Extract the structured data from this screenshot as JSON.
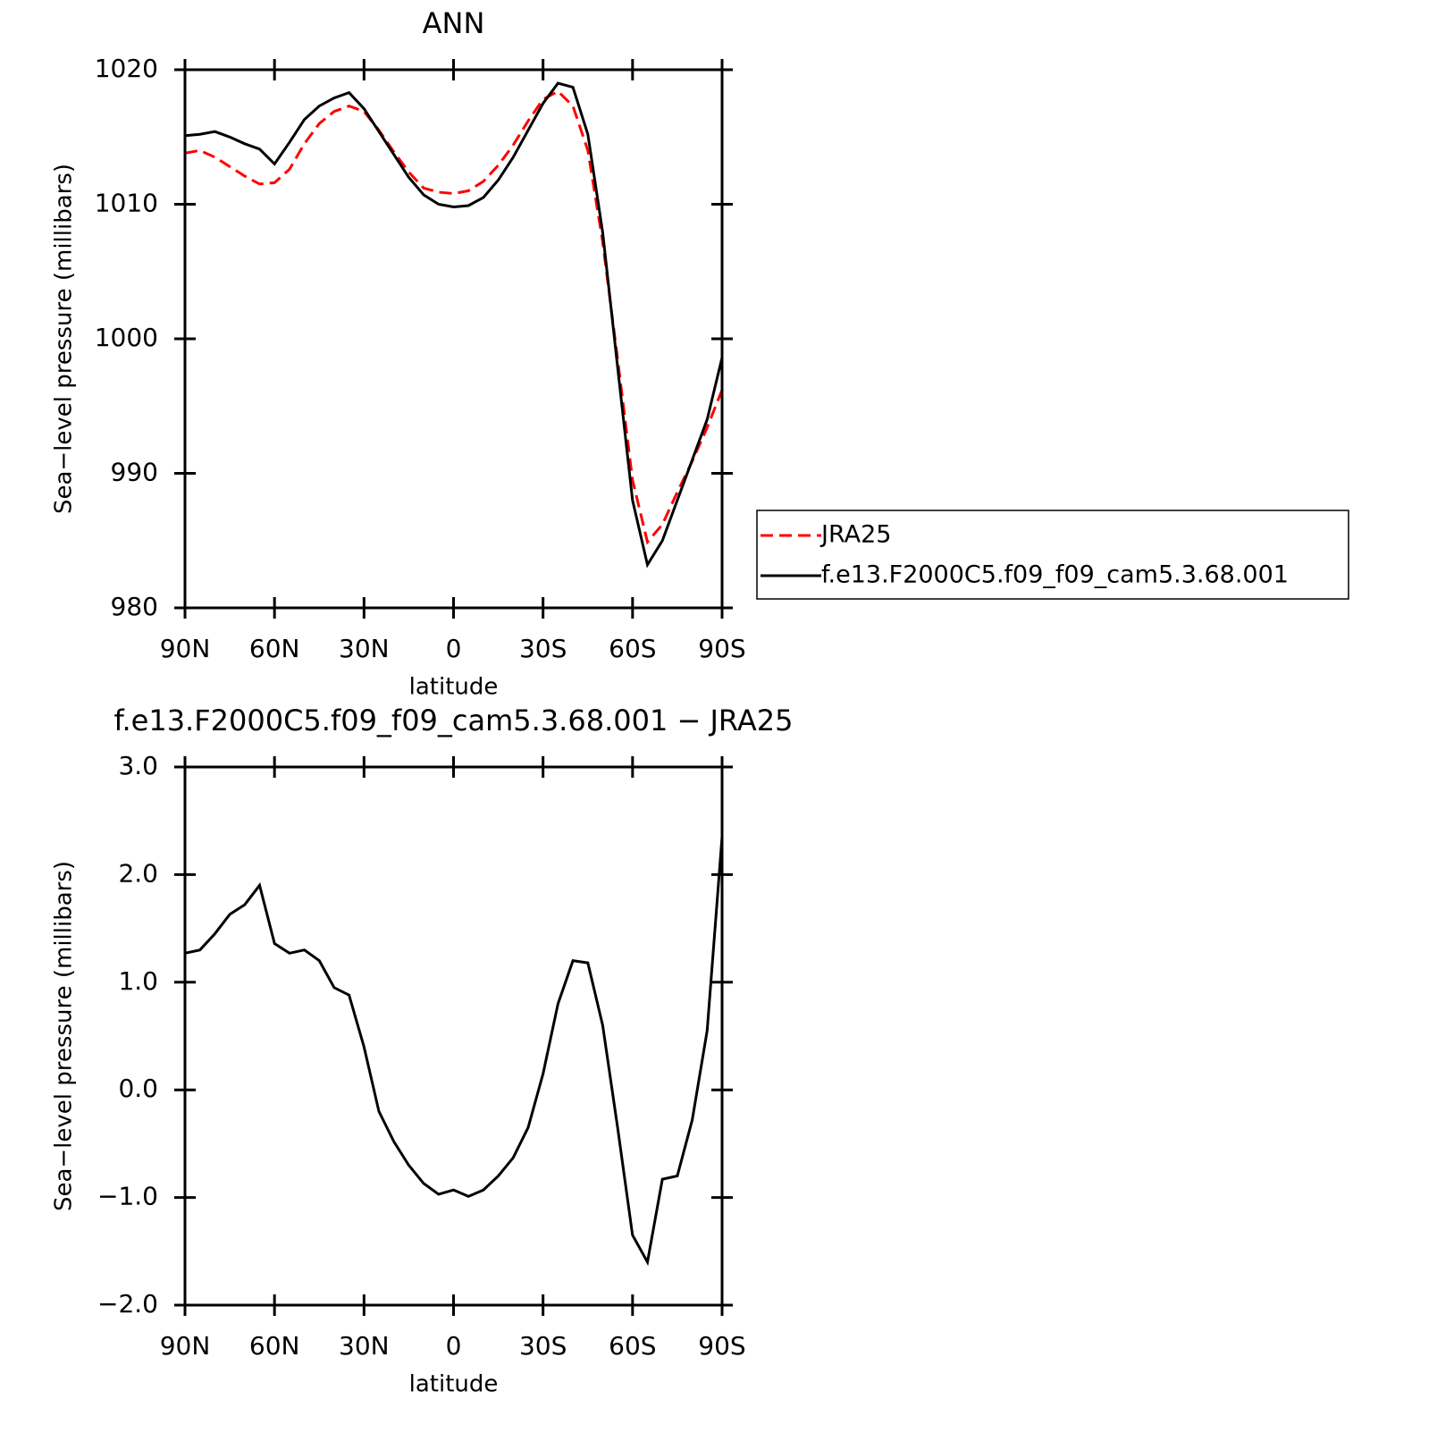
{
  "chart_data": [
    {
      "type": "line",
      "title": "ANN",
      "xlabel": "latitude",
      "ylabel": "Sea−level pressure (millibars)",
      "x": [
        90,
        85,
        80,
        75,
        70,
        65,
        60,
        55,
        50,
        45,
        40,
        35,
        30,
        25,
        20,
        15,
        10,
        5,
        0,
        -5,
        -10,
        -15,
        -20,
        -25,
        -30,
        -35,
        -40,
        -45,
        -50,
        -55,
        -60,
        -65,
        -70,
        -75,
        -80,
        -85,
        -90
      ],
      "series": [
        {
          "name": "JRA25",
          "color": "#ff0000",
          "dash": true,
          "values": [
            1013.8,
            1014.0,
            1013.5,
            1012.8,
            1012.1,
            1011.5,
            1011.6,
            1012.6,
            1014.5,
            1016.0,
            1016.9,
            1017.3,
            1016.9,
            1015.5,
            1013.9,
            1012.4,
            1011.2,
            1010.9,
            1010.8,
            1011.0,
            1011.7,
            1012.9,
            1014.4,
            1016.2,
            1017.8,
            1018.4,
            1017.3,
            1014.0,
            1007.2,
            998.5,
            989.5,
            984.9,
            986.2,
            988.6,
            990.9,
            993.4,
            996.2
          ]
        },
        {
          "name": "f.e13.F2000C5.f09_f09_cam5.3.68.001",
          "color": "#000000",
          "dash": false,
          "values": [
            1015.1,
            1015.2,
            1015.4,
            1015.0,
            1014.5,
            1014.1,
            1013.0,
            1014.6,
            1016.3,
            1017.3,
            1017.9,
            1018.3,
            1017.1,
            1015.4,
            1013.7,
            1012.0,
            1010.7,
            1010.0,
            1009.8,
            1009.9,
            1010.5,
            1011.8,
            1013.5,
            1015.5,
            1017.5,
            1019.0,
            1018.7,
            1015.2,
            1007.9,
            997.9,
            988.0,
            983.2,
            985.0,
            988.0,
            991.0,
            994.0,
            998.6
          ]
        }
      ],
      "xlim": [
        90,
        -90
      ],
      "xticks": [
        {
          "value": 90,
          "label": "90N"
        },
        {
          "value": 60,
          "label": "60N"
        },
        {
          "value": 30,
          "label": "30N"
        },
        0,
        {
          "value": -30,
          "label": "30S"
        },
        {
          "value": -60,
          "label": "60S"
        },
        {
          "value": -90,
          "label": "90S"
        }
      ],
      "ylim": [
        980,
        1020
      ],
      "yticks": [
        980,
        990,
        1000,
        1010,
        1020
      ],
      "legend": "right"
    },
    {
      "type": "line",
      "title": "f.e13.F2000C5.f09_f09_cam5.3.68.001 − JRA25",
      "xlabel": "latitude",
      "ylabel": "Sea−level pressure (millibars)",
      "x": [
        90,
        85,
        80,
        75,
        70,
        65,
        60,
        55,
        50,
        45,
        40,
        35,
        30,
        25,
        20,
        15,
        10,
        5,
        0,
        -5,
        -10,
        -15,
        -20,
        -25,
        -30,
        -35,
        -40,
        -45,
        -50,
        -55,
        -60,
        -65,
        -70,
        -75,
        -80,
        -85,
        -90
      ],
      "values": [
        1.27,
        1.3,
        1.45,
        1.63,
        1.72,
        1.9,
        1.36,
        1.27,
        1.3,
        1.2,
        0.95,
        0.88,
        0.4,
        -0.2,
        -0.48,
        -0.7,
        -0.87,
        -0.97,
        -0.93,
        -0.99,
        -0.93,
        -0.8,
        -0.63,
        -0.35,
        0.15,
        0.8,
        1.2,
        1.18,
        0.6,
        -0.35,
        -1.35,
        -1.6,
        -0.83,
        -0.8,
        -0.28,
        0.55,
        2.35
      ],
      "color": "#000000",
      "xlim": [
        90,
        -90
      ],
      "xticks": [
        {
          "value": 90,
          "label": "90N"
        },
        {
          "value": 60,
          "label": "60N"
        },
        {
          "value": 30,
          "label": "30N"
        },
        0,
        {
          "value": -30,
          "label": "30S"
        },
        {
          "value": -60,
          "label": "60S"
        },
        {
          "value": -90,
          "label": "90S"
        }
      ],
      "ylim": [
        -2,
        3
      ],
      "yticks": [
        {
          "value": -2,
          "label": "−2.0"
        },
        {
          "value": -1,
          "label": "−1.0"
        },
        {
          "value": 0,
          "label": "0.0"
        },
        {
          "value": 1,
          "label": "1.0"
        },
        {
          "value": 2,
          "label": "2.0"
        },
        {
          "value": 3,
          "label": "3.0"
        }
      ]
    }
  ]
}
